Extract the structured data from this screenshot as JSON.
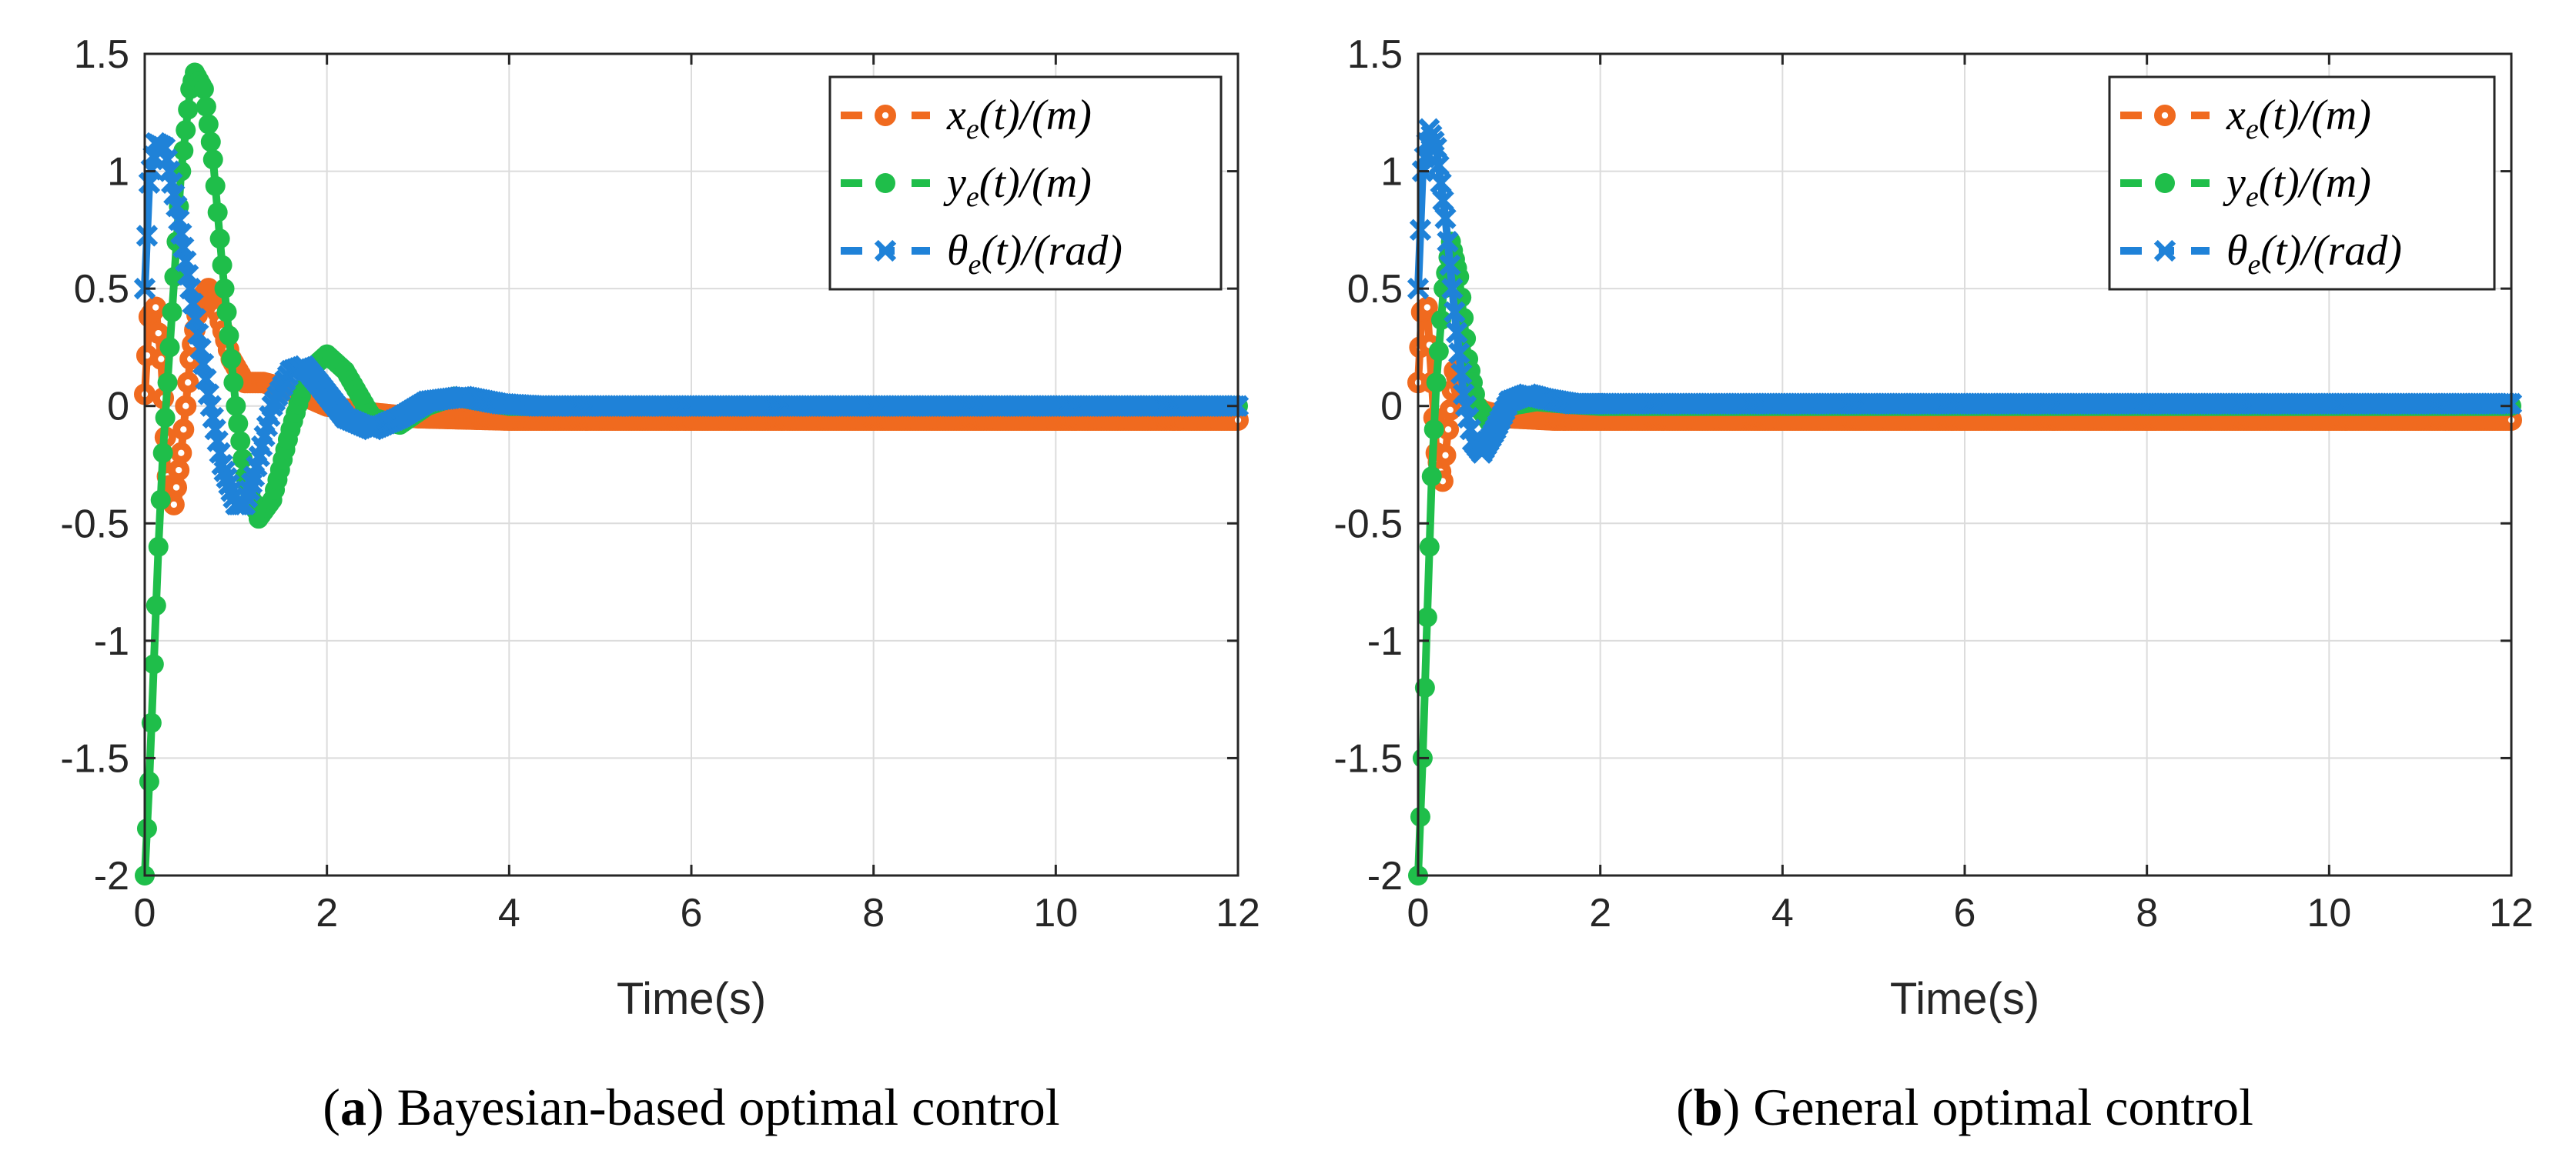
{
  "chart_data": [
    {
      "type": "line",
      "caption_letter": "a",
      "caption_text": "Bayesian-based optimal control",
      "xlabel": "Time(s)",
      "ylabel": "",
      "xlim": [
        0,
        12
      ],
      "ylim": [
        -2,
        1.5
      ],
      "xticks": [
        0,
        2,
        4,
        6,
        8,
        10,
        12
      ],
      "xtick_labels": [
        "0",
        "2",
        "4",
        "6",
        "8",
        "10",
        "12"
      ],
      "yticks": [
        -2,
        -1.5,
        -1,
        -0.5,
        0,
        0.5,
        1,
        1.5
      ],
      "ytick_labels": [
        "-2",
        "-1.5",
        "-1",
        "-0.5",
        "0",
        "0.5",
        "1",
        "1.5"
      ],
      "grid": true,
      "legend_position": "top-right",
      "series": [
        {
          "name": "x_e(t)/(m)",
          "legend_main": "x",
          "legend_sub": "e",
          "legend_rest": "(t)/(m)",
          "color": "#f06a1f",
          "marker": "circle",
          "points": [
            [
              0,
              0.05
            ],
            [
              0.05,
              0.38
            ],
            [
              0.12,
              0.42
            ],
            [
              0.18,
              0.2
            ],
            [
              0.25,
              -0.3
            ],
            [
              0.32,
              -0.42
            ],
            [
              0.4,
              -0.2
            ],
            [
              0.5,
              0.2
            ],
            [
              0.6,
              0.45
            ],
            [
              0.7,
              0.5
            ],
            [
              0.8,
              0.4
            ],
            [
              0.95,
              0.2
            ],
            [
              1.1,
              0.1
            ],
            [
              1.3,
              0.1
            ],
            [
              1.5,
              0.08
            ],
            [
              1.7,
              0.05
            ],
            [
              2.0,
              0.0
            ],
            [
              2.5,
              -0.03
            ],
            [
              3.0,
              -0.05
            ],
            [
              4.0,
              -0.06
            ],
            [
              6.0,
              -0.06
            ],
            [
              12.0,
              -0.06
            ]
          ]
        },
        {
          "name": "y_e(t)/(m)",
          "legend_main": "y",
          "legend_sub": "e",
          "legend_rest": "(t)/(m)",
          "color": "#1fbe4a",
          "marker": "dot",
          "points": [
            [
              0,
              -2.0
            ],
            [
              0.05,
              -1.6
            ],
            [
              0.1,
              -1.1
            ],
            [
              0.15,
              -0.6
            ],
            [
              0.2,
              -0.2
            ],
            [
              0.3,
              0.4
            ],
            [
              0.4,
              1.0
            ],
            [
              0.5,
              1.35
            ],
            [
              0.55,
              1.42
            ],
            [
              0.65,
              1.35
            ],
            [
              0.75,
              1.05
            ],
            [
              0.85,
              0.6
            ],
            [
              1.0,
              0.0
            ],
            [
              1.1,
              -0.3
            ],
            [
              1.25,
              -0.48
            ],
            [
              1.4,
              -0.4
            ],
            [
              1.6,
              -0.1
            ],
            [
              1.8,
              0.15
            ],
            [
              2.0,
              0.22
            ],
            [
              2.2,
              0.15
            ],
            [
              2.5,
              -0.05
            ],
            [
              2.8,
              -0.08
            ],
            [
              3.1,
              0.0
            ],
            [
              3.4,
              0.04
            ],
            [
              3.7,
              0.02
            ],
            [
              4.0,
              0.0
            ],
            [
              5.0,
              0.0
            ],
            [
              12.0,
              0.0
            ]
          ]
        },
        {
          "name": "θ_e(t)/(rad)",
          "legend_main": "θ",
          "legend_sub": "e",
          "legend_rest": "(t)/(rad)",
          "color": "#1f82d8",
          "marker": "x",
          "points": [
            [
              0,
              0.5
            ],
            [
              0.05,
              0.95
            ],
            [
              0.12,
              1.12
            ],
            [
              0.22,
              1.1
            ],
            [
              0.35,
              0.85
            ],
            [
              0.5,
              0.5
            ],
            [
              0.7,
              0.05
            ],
            [
              0.85,
              -0.25
            ],
            [
              1.0,
              -0.42
            ],
            [
              1.1,
              -0.42
            ],
            [
              1.2,
              -0.3
            ],
            [
              1.4,
              0.0
            ],
            [
              1.6,
              0.15
            ],
            [
              1.75,
              0.17
            ],
            [
              1.9,
              0.1
            ],
            [
              2.2,
              -0.05
            ],
            [
              2.5,
              -0.1
            ],
            [
              2.8,
              -0.05
            ],
            [
              3.1,
              0.02
            ],
            [
              3.5,
              0.04
            ],
            [
              3.9,
              0.01
            ],
            [
              4.3,
              0.0
            ],
            [
              12.0,
              0.0
            ]
          ]
        }
      ]
    },
    {
      "type": "line",
      "caption_letter": "b",
      "caption_text": "General optimal control",
      "xlabel": "Time(s)",
      "ylabel": "",
      "xlim": [
        0,
        12
      ],
      "ylim": [
        -2,
        1.5
      ],
      "xticks": [
        0,
        2,
        4,
        6,
        8,
        10,
        12
      ],
      "xtick_labels": [
        "0",
        "2",
        "4",
        "6",
        "8",
        "10",
        "12"
      ],
      "yticks": [
        -2,
        -1.5,
        -1,
        -0.5,
        0,
        0.5,
        1,
        1.5
      ],
      "ytick_labels": [
        "-2",
        "-1.5",
        "-1",
        "-0.5",
        "0",
        "0.5",
        "1",
        "1.5"
      ],
      "grid": true,
      "legend_position": "top-right",
      "series": [
        {
          "name": "x_e(t)/(m)",
          "legend_main": "x",
          "legend_sub": "e",
          "legend_rest": "(t)/(m)",
          "color": "#f06a1f",
          "marker": "circle",
          "points": [
            [
              0,
              0.1
            ],
            [
              0.04,
              0.4
            ],
            [
              0.1,
              0.42
            ],
            [
              0.15,
              0.1
            ],
            [
              0.2,
              -0.2
            ],
            [
              0.27,
              -0.32
            ],
            [
              0.33,
              -0.1
            ],
            [
              0.4,
              0.15
            ],
            [
              0.5,
              0.05
            ],
            [
              0.7,
              -0.02
            ],
            [
              1.0,
              -0.05
            ],
            [
              1.5,
              -0.06
            ],
            [
              12.0,
              -0.06
            ]
          ]
        },
        {
          "name": "y_e(t)/(m)",
          "legend_main": "y",
          "legend_sub": "e",
          "legend_rest": "(t)/(m)",
          "color": "#1fbe4a",
          "marker": "dot",
          "points": [
            [
              0,
              -2.0
            ],
            [
              0.05,
              -1.5
            ],
            [
              0.1,
              -0.9
            ],
            [
              0.15,
              -0.3
            ],
            [
              0.2,
              0.1
            ],
            [
              0.28,
              0.5
            ],
            [
              0.36,
              0.7
            ],
            [
              0.45,
              0.55
            ],
            [
              0.55,
              0.2
            ],
            [
              0.65,
              0.0
            ],
            [
              0.8,
              -0.08
            ],
            [
              1.0,
              0.0
            ],
            [
              1.3,
              0.02
            ],
            [
              1.6,
              0.01
            ],
            [
              2.0,
              0.0
            ],
            [
              12.0,
              0.0
            ]
          ]
        },
        {
          "name": "θ_e(t)/(rad)",
          "legend_main": "θ",
          "legend_sub": "e",
          "legend_rest": "(t)/(rad)",
          "color": "#1f82d8",
          "marker": "x",
          "points": [
            [
              0,
              0.5
            ],
            [
              0.05,
              1.0
            ],
            [
              0.12,
              1.18
            ],
            [
              0.2,
              1.1
            ],
            [
              0.3,
              0.8
            ],
            [
              0.4,
              0.4
            ],
            [
              0.5,
              0.05
            ],
            [
              0.6,
              -0.15
            ],
            [
              0.7,
              -0.2
            ],
            [
              0.85,
              -0.1
            ],
            [
              1.0,
              0.02
            ],
            [
              1.2,
              0.05
            ],
            [
              1.4,
              0.03
            ],
            [
              1.7,
              0.01
            ],
            [
              2.0,
              0.01
            ],
            [
              12.0,
              0.01
            ]
          ]
        }
      ]
    }
  ]
}
